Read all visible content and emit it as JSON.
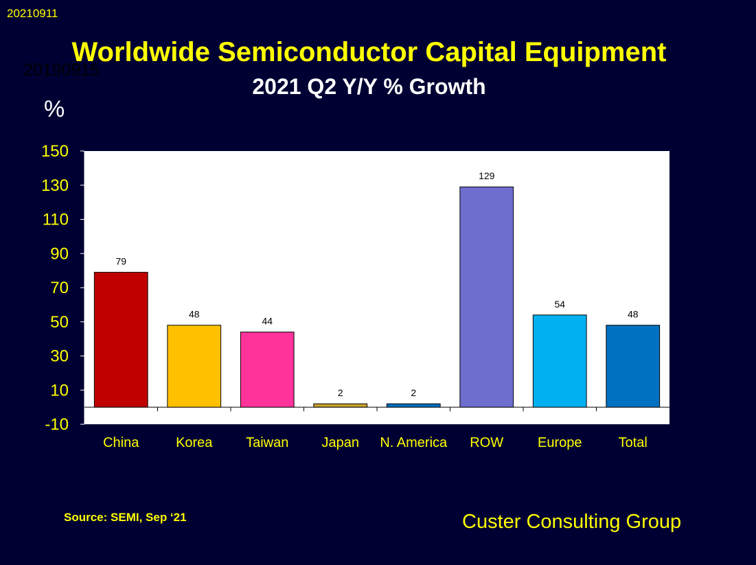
{
  "header": {
    "date_stamp": "20210911",
    "ghost_stamp": "20190915"
  },
  "footer": {
    "source": "Source: SEMI, Sep ‘21",
    "credit": "Custer Consulting Group"
  },
  "colors": {
    "background": "#000033",
    "title": "#ffff00",
    "subtitle": "#ffffff",
    "axis_text": "#ffff00",
    "plot_area": "#ffffff"
  },
  "chart_data": {
    "type": "bar",
    "title": "Worldwide Semiconductor Capital Equipment",
    "subtitle": "2021 Q2 Y/Y % Growth",
    "ylabel": "%",
    "xlabel": "",
    "categories": [
      "China",
      "Korea",
      "Taiwan",
      "Japan",
      "N. America",
      "ROW",
      "Europe",
      "Total"
    ],
    "values": [
      79,
      48,
      44,
      2,
      2,
      129,
      54,
      48
    ],
    "data_labels": [
      "79",
      "48",
      "44",
      "2",
      "2",
      "129",
      "54",
      "48"
    ],
    "bar_colors": [
      "#c00000",
      "#ffc000",
      "#ff3399",
      "#c8a22c",
      "#0070c0",
      "#6e6ecf",
      "#00b0f0",
      "#0070c0"
    ],
    "ylim": [
      -10,
      150
    ],
    "yticks": [
      150,
      130,
      110,
      90,
      70,
      50,
      30,
      10,
      -10
    ],
    "grid": false,
    "legend": "none"
  }
}
